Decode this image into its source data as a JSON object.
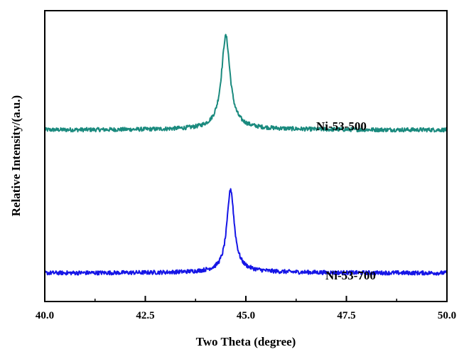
{
  "chart_data": {
    "type": "line",
    "title": "",
    "xlabel": "Two Theta (degree)",
    "ylabel": "Relative Intensity/(a.u.)",
    "xlim": [
      40.0,
      50.0
    ],
    "ylim": [
      0,
      100
    ],
    "x_ticks": [
      "40.0",
      "42.5",
      "45.0",
      "47.5",
      "50.0"
    ],
    "y_ticks_shown": false,
    "grid": false,
    "legend": "none",
    "series": [
      {
        "name": "Ni-53-500",
        "color": "#1a8a7e",
        "peak_x": 44.5,
        "baseline": 59.0,
        "peak_height": 31.5,
        "peak_width": 0.13,
        "x": [
          40.0,
          42.0,
          43.5,
          44.0,
          44.3,
          44.5,
          44.7,
          45.0,
          45.5,
          47.0,
          50.0
        ],
        "values": [
          58.8,
          58.9,
          59.8,
          61.5,
          72.0,
          90.5,
          74.5,
          63.5,
          61.0,
          60.0,
          59.0
        ]
      },
      {
        "name": "Ni-53-700",
        "color": "#1515e6",
        "peak_x": 44.62,
        "baseline": 9.8,
        "peak_height": 28.0,
        "peak_width": 0.11,
        "x": [
          40.0,
          42.0,
          43.5,
          44.0,
          44.4,
          44.62,
          44.8,
          45.1,
          45.6,
          47.0,
          50.0
        ],
        "values": [
          9.9,
          9.8,
          10.4,
          11.5,
          19.0,
          37.8,
          22.5,
          13.5,
          11.8,
          10.8,
          10.1
        ]
      }
    ]
  }
}
